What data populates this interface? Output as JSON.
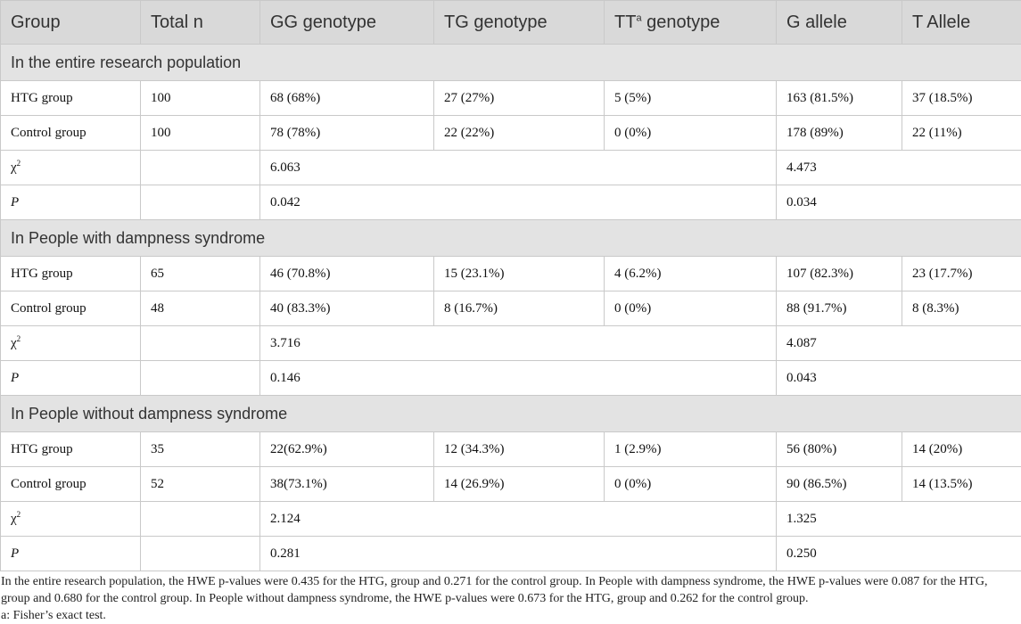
{
  "table": {
    "headers": {
      "group": "Group",
      "total_n": "Total n",
      "gg": "GG genotype",
      "tg": "TG genotype",
      "tt_main": "TT",
      "tt_sup": "a",
      "tt_rest": " genotype",
      "g_allele": "G allele",
      "t_allele": "T Allele"
    },
    "sections": [
      {
        "title": "In the entire research population",
        "htg": {
          "label": "HTG group",
          "n": "100",
          "gg": "68 (68%)",
          "tg": "27 (27%)",
          "tt": "5 (5%)",
          "g": "163 (81.5%)",
          "t": "37 (18.5%)"
        },
        "control": {
          "label": "Control group",
          "n": "100",
          "gg": "78 (78%)",
          "tg": "22 (22%)",
          "tt": "0 (0%)",
          "g": "178 (89%)",
          "t": "22 (11%)"
        },
        "chi": {
          "symbol": "χ",
          "sup": "2",
          "genotype": "6.063",
          "allele": "4.473"
        },
        "p": {
          "label": "P",
          "genotype": "0.042",
          "allele": "0.034"
        }
      },
      {
        "title": "In People with dampness syndrome",
        "htg": {
          "label": "HTG group",
          "n": "65",
          "gg": "46 (70.8%)",
          "tg": "15 (23.1%)",
          "tt": "4 (6.2%)",
          "g": "107 (82.3%)",
          "t": "23 (17.7%)"
        },
        "control": {
          "label": "Control group",
          "n": "48",
          "gg": "40 (83.3%)",
          "tg": "8 (16.7%)",
          "tt": "0 (0%)",
          "g": "88 (91.7%)",
          "t": "8 (8.3%)"
        },
        "chi": {
          "symbol": "χ",
          "sup": "2",
          "genotype": "3.716",
          "allele": "4.087"
        },
        "p": {
          "label": "P",
          "genotype": "0.146",
          "allele": "0.043"
        }
      },
      {
        "title": "In People without dampness syndrome",
        "htg": {
          "label": "HTG group",
          "n": "35",
          "gg": "22(62.9%)",
          "tg": "12 (34.3%)",
          "tt": "1 (2.9%)",
          "g": "56 (80%)",
          "t": "14 (20%)"
        },
        "control": {
          "label": "Control group",
          "n": "52",
          "gg": "38(73.1%)",
          "tg": "14 (26.9%)",
          "tt": "0 (0%)",
          "g": "90 (86.5%)",
          "t": "14 (13.5%)"
        },
        "chi": {
          "symbol": "χ",
          "sup": "2",
          "genotype": "2.124",
          "allele": "1.325"
        },
        "p": {
          "label": "P",
          "genotype": "0.281",
          "allele": "0.250"
        }
      }
    ]
  },
  "footnote": {
    "text": "In the entire research population, the HWE p-values were 0.435 for the HTG, group and 0.271 for the control group. In People with dampness syndrome, the HWE p-values were 0.087 for the HTG, group and 0.680 for the control group. In People without dampness syndrome, the HWE p-values were 0.673 for the HTG, group and 0.262 for the control group.",
    "note_a": "a: Fisher’s exact test."
  }
}
